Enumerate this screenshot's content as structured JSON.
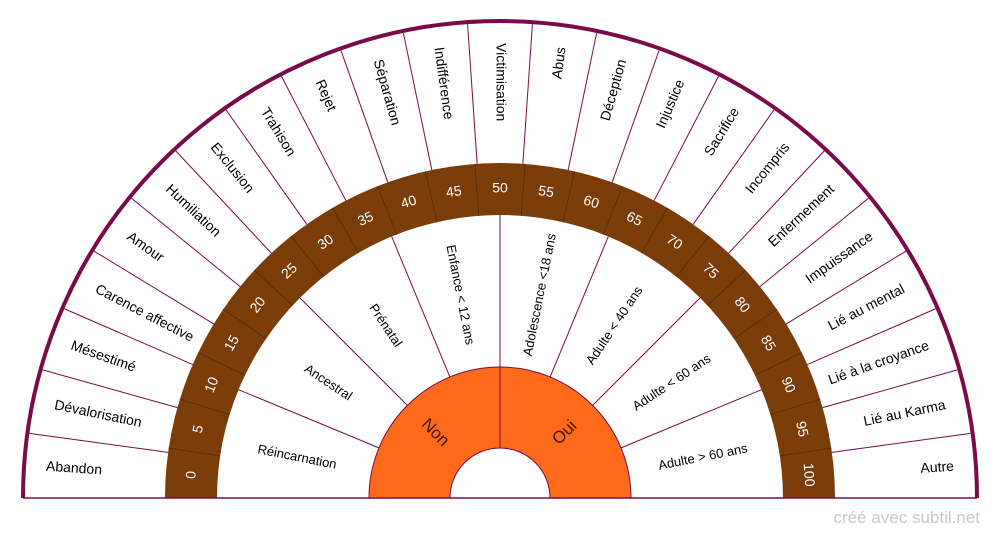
{
  "chart_data": {
    "type": "radial-pendulum-chart",
    "outer_labels": [
      "Abandon",
      "Dévalorisation",
      "Mésestimé",
      "Carence affective",
      "Amour",
      "Humiliation",
      "Exclusion",
      "Trahison",
      "Rejet",
      "Séparation",
      "Indifférence",
      "Victimisation",
      "Abus",
      "Déception",
      "Injustice",
      "Sacrifice",
      "Incompris",
      "Enfermement",
      "Impuissance",
      "Lié au mental",
      "Lié à la croyance",
      "Lié au Karma",
      "Autre"
    ],
    "scale_values": [
      "0",
      "5",
      "10",
      "15",
      "20",
      "25",
      "30",
      "35",
      "40",
      "45",
      "50",
      "55",
      "60",
      "65",
      "70",
      "75",
      "80",
      "85",
      "90",
      "95",
      "100"
    ],
    "period_labels": [
      "Réincarnation",
      "Ancestral",
      "Prénatal",
      "Enfance < 12 ans",
      "Adolescence <18 ans",
      "Adulte < 40 ans",
      "Adulte < 60 ans",
      "Adulte > 60 ans"
    ],
    "center_labels": [
      "Non",
      "Oui"
    ]
  },
  "colors": {
    "rim": "#7a0a4a",
    "divider": "#7a0a4a",
    "scale_band": "#7a3d0a",
    "scale_text": "#ffffff",
    "center_fill": "#ff6a1a",
    "label_text": "#000000"
  },
  "footer": {
    "credit": "créé avec subtil.net"
  }
}
